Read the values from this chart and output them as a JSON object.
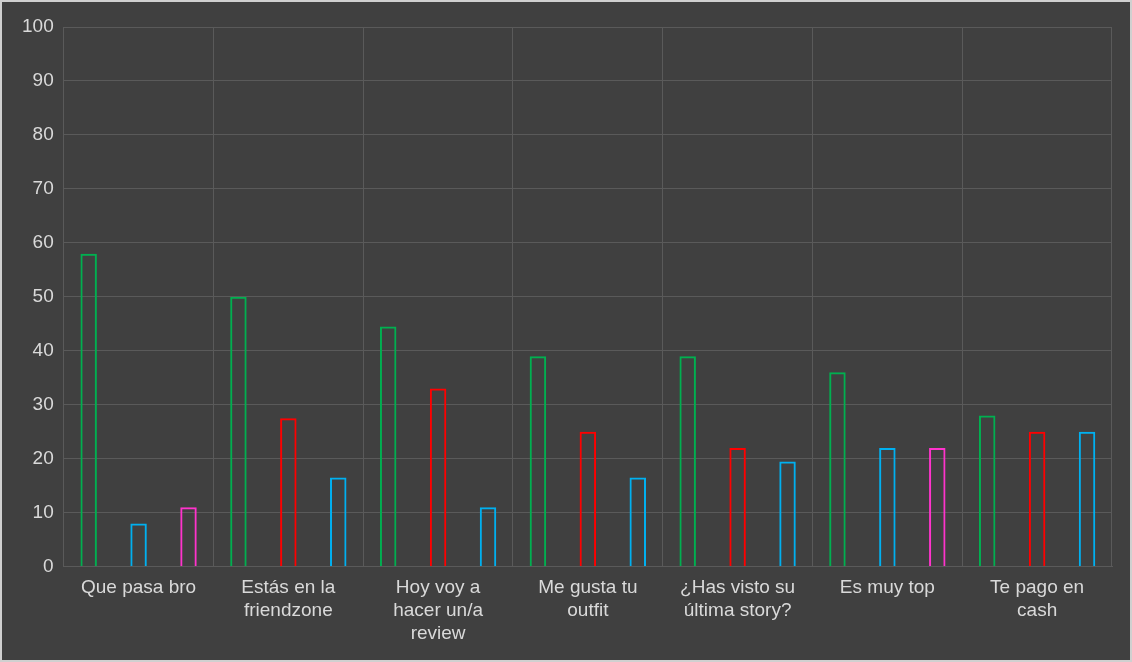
{
  "chart_data": {
    "type": "bar",
    "categories": [
      "Que pasa bro",
      "Estás en la friendzone",
      "Hoy voy a hacer un/a review",
      "Me gusta tu outfit",
      "¿Has visto su última story?",
      "Es muy top",
      "Te pago en cash"
    ],
    "series": [
      {
        "color": "#00b050",
        "values": [
          58,
          50,
          44.5,
          39,
          39,
          36,
          28
        ]
      },
      {
        "colors": [
          "#00b0f0",
          "#ff0000",
          "#ff0000",
          "#ff0000",
          "#ff0000",
          "#00b0f0",
          "#ff0000"
        ],
        "values": [
          8,
          27.5,
          33,
          25,
          22,
          22,
          25
        ]
      },
      {
        "colors": [
          "#ff33cc",
          "#00b0f0",
          "#00b0f0",
          "#00b0f0",
          "#00b0f0",
          "#ff33cc",
          "#00b0f0"
        ],
        "values": [
          11,
          16.5,
          11,
          16.5,
          19.5,
          22,
          25
        ]
      }
    ],
    "ylim": [
      0,
      100
    ],
    "yticks": [
      0,
      10,
      20,
      30,
      40,
      50,
      60,
      70,
      80,
      90,
      100
    ],
    "grid": true,
    "legend": false
  }
}
